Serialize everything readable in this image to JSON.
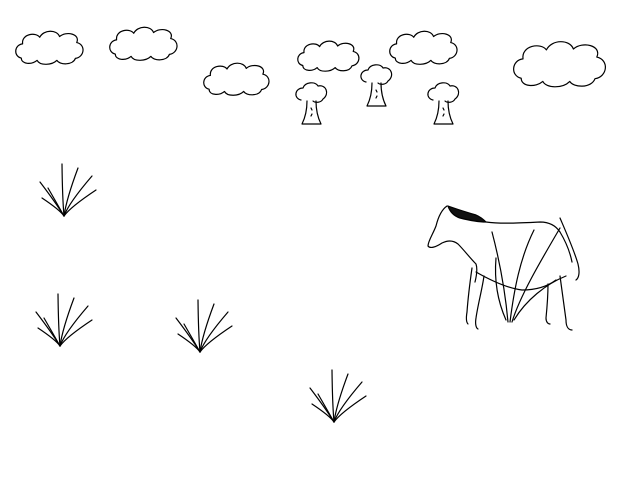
{
  "canvas": {
    "background": "#ffffff",
    "stroke_color": "#000000"
  },
  "scene": {
    "cloud_icon": "cloud-icon",
    "tree_icon": "tree-icon",
    "grass_icon": "grass-tuft-icon",
    "animal_icon": "horse-icon"
  }
}
